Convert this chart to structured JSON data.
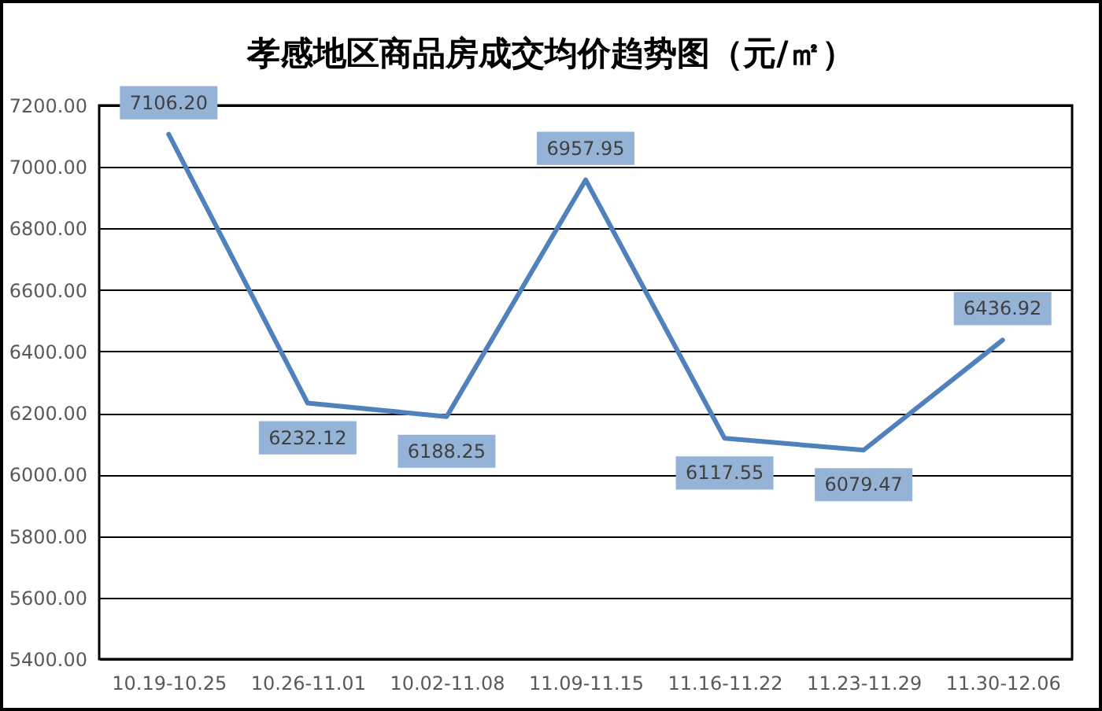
{
  "chart_data": {
    "type": "line",
    "title": "孝感地区商品房成交均价趋势图（元/㎡）",
    "categories": [
      "10.19-10.25",
      "10.26-11.01",
      "10.02-11.08",
      "11.09-11.15",
      "11.16-11.22",
      "11.23-11.29",
      "11.30-12.06"
    ],
    "series": [
      {
        "color": "#4f81bd",
        "values": [
          7106.2,
          6232.12,
          6188.25,
          6957.95,
          6117.55,
          6079.47,
          6436.92
        ],
        "value_labels": [
          "7106.20",
          "6232.12",
          "6188.25",
          "6957.95",
          "6117.55",
          "6079.47",
          "6436.92"
        ]
      }
    ],
    "ylim": [
      5400,
      7200
    ],
    "yticks": [
      {
        "value": 5400,
        "label": "5400.00"
      },
      {
        "value": 5600,
        "label": "5600.00"
      },
      {
        "value": 5800,
        "label": "5800.00"
      },
      {
        "value": 6000,
        "label": "6000.00"
      },
      {
        "value": 6200,
        "label": "6200.00"
      },
      {
        "value": 6400,
        "label": "6400.00"
      },
      {
        "value": 6600,
        "label": "6600.00"
      },
      {
        "value": 6800,
        "label": "6800.00"
      },
      {
        "value": 7000,
        "label": "7000.00"
      },
      {
        "value": 7200,
        "label": "7200.00"
      }
    ],
    "grid": "y",
    "legend": false,
    "marker": "none",
    "line_style": "solid"
  }
}
